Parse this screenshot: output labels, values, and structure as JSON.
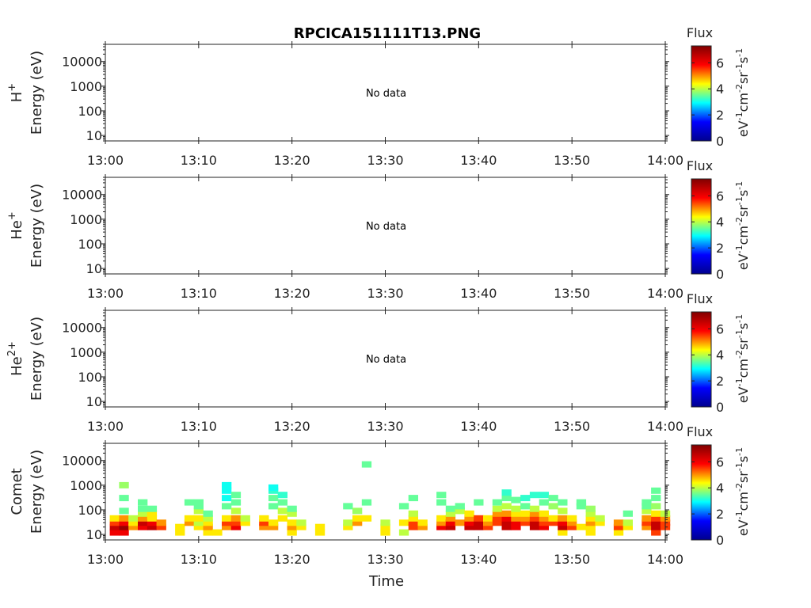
{
  "title": "RPCICA151111T13.PNG",
  "xlabel": "Time",
  "x_ticks": [
    "13:00",
    "13:10",
    "13:20",
    "13:30",
    "13:40",
    "13:50",
    "14:00"
  ],
  "colorbar": {
    "title": "Flux",
    "unit_base": [
      "eV",
      "cm",
      "sr",
      "s"
    ],
    "unit_exp": [
      "-1",
      "-2",
      "-1",
      "-1"
    ],
    "ticks": [
      "0",
      "2",
      "4",
      "6"
    ],
    "range": [
      0,
      7.3
    ],
    "colormap": [
      "#00008f",
      "#0000ff",
      "#00ffff",
      "#ffff00",
      "#ff0000",
      "#800000"
    ]
  },
  "chart_data": [
    {
      "type": "heatmap",
      "species_base": "H",
      "species_sup": "+",
      "ylabel": "Energy (eV)",
      "y_ticks": [
        "10",
        "100",
        "1000",
        "10000"
      ],
      "ylim": [
        6,
        50000
      ],
      "yscale": "log",
      "xlim": [
        "13:00",
        "14:00"
      ],
      "annotation": "No data",
      "points": []
    },
    {
      "type": "heatmap",
      "species_base": "He",
      "species_sup": "+",
      "ylabel": "Energy (eV)",
      "y_ticks": [
        "10",
        "100",
        "1000",
        "10000"
      ],
      "ylim": [
        6,
        50000
      ],
      "yscale": "log",
      "xlim": [
        "13:00",
        "14:00"
      ],
      "annotation": "No data",
      "points": []
    },
    {
      "type": "heatmap",
      "species_base": "He",
      "species_sup": "2+",
      "ylabel": "Energy (eV)",
      "y_ticks": [
        "10",
        "100",
        "1000",
        "10000"
      ],
      "ylim": [
        6,
        50000
      ],
      "yscale": "log",
      "xlim": [
        "13:00",
        "14:00"
      ],
      "annotation": "No data",
      "points": []
    },
    {
      "type": "heatmap",
      "species_base": "Comet",
      "species_sup": "",
      "ylabel": "Energy (eV)",
      "y_ticks": [
        "10",
        "100",
        "1000",
        "10000"
      ],
      "ylim": [
        6,
        50000
      ],
      "yscale": "log",
      "xlim": [
        "13:00",
        "14:00"
      ],
      "annotation": "",
      "points": [
        [
          "13:01",
          12,
          6.0
        ],
        [
          "13:01",
          20,
          6.5
        ],
        [
          "13:01",
          30,
          5.5
        ],
        [
          "13:01",
          45,
          4.5
        ],
        [
          "13:02",
          12,
          6.0
        ],
        [
          "13:02",
          20,
          7.0
        ],
        [
          "13:02",
          30,
          6.0
        ],
        [
          "13:02",
          45,
          5.0
        ],
        [
          "13:02",
          90,
          3.5
        ],
        [
          "13:02",
          300,
          3.5
        ],
        [
          "13:02",
          1000,
          3.8
        ],
        [
          "13:03",
          20,
          5.0
        ],
        [
          "13:03",
          30,
          4.5
        ],
        [
          "13:03",
          45,
          4.0
        ],
        [
          "13:04",
          20,
          6.0
        ],
        [
          "13:04",
          30,
          6.5
        ],
        [
          "13:04",
          45,
          5.0
        ],
        [
          "13:04",
          70,
          4.0
        ],
        [
          "13:04",
          110,
          3.5
        ],
        [
          "13:04",
          200,
          3.5
        ],
        [
          "13:05",
          20,
          6.5
        ],
        [
          "13:05",
          30,
          6.0
        ],
        [
          "13:05",
          45,
          4.5
        ],
        [
          "13:05",
          70,
          4.5
        ],
        [
          "13:05",
          110,
          3.5
        ],
        [
          "13:06",
          20,
          5.5
        ],
        [
          "13:06",
          30,
          5.0
        ],
        [
          "13:08",
          12,
          4.5
        ],
        [
          "13:08",
          20,
          4.5
        ],
        [
          "13:09",
          30,
          5.0
        ],
        [
          "13:09",
          45,
          4.5
        ],
        [
          "13:09",
          200,
          3.5
        ],
        [
          "13:10",
          20,
          4.5
        ],
        [
          "13:10",
          30,
          4.0
        ],
        [
          "13:10",
          45,
          4.5
        ],
        [
          "13:10",
          90,
          4.0
        ],
        [
          "13:10",
          140,
          3.5
        ],
        [
          "13:10",
          200,
          3.5
        ],
        [
          "13:11",
          12,
          4.5
        ],
        [
          "13:11",
          20,
          5.0
        ],
        [
          "13:11",
          30,
          4.5
        ],
        [
          "13:11",
          45,
          4.0
        ],
        [
          "13:11",
          70,
          3.5
        ],
        [
          "13:12",
          12,
          4.5
        ],
        [
          "13:13",
          20,
          5.0
        ],
        [
          "13:13",
          30,
          5.5
        ],
        [
          "13:13",
          45,
          4.5
        ],
        [
          "13:13",
          140,
          3.5
        ],
        [
          "13:13",
          300,
          3.0
        ],
        [
          "13:13",
          600,
          3.0
        ],
        [
          "13:13",
          1000,
          3.0
        ],
        [
          "13:14",
          20,
          6.0
        ],
        [
          "13:14",
          30,
          5.5
        ],
        [
          "13:14",
          45,
          5.0
        ],
        [
          "13:14",
          90,
          4.0
        ],
        [
          "13:14",
          200,
          3.5
        ],
        [
          "13:14",
          400,
          3.5
        ],
        [
          "13:15",
          30,
          4.5
        ],
        [
          "13:15",
          45,
          4.0
        ],
        [
          "13:17",
          20,
          5.0
        ],
        [
          "13:17",
          30,
          5.5
        ],
        [
          "13:17",
          45,
          4.5
        ],
        [
          "13:18",
          20,
          5.0
        ],
        [
          "13:18",
          30,
          4.5
        ],
        [
          "13:18",
          140,
          3.5
        ],
        [
          "13:18",
          300,
          3.5
        ],
        [
          "13:18",
          600,
          3.2
        ],
        [
          "13:18",
          800,
          3.0
        ],
        [
          "13:19",
          45,
          4.5
        ],
        [
          "13:19",
          90,
          4.0
        ],
        [
          "13:19",
          200,
          3.5
        ],
        [
          "13:19",
          400,
          3.2
        ],
        [
          "13:20",
          12,
          4.5
        ],
        [
          "13:20",
          20,
          5.0
        ],
        [
          "13:20",
          30,
          4.5
        ],
        [
          "13:20",
          70,
          4.0
        ],
        [
          "13:20",
          110,
          3.5
        ],
        [
          "13:21",
          20,
          4.5
        ],
        [
          "13:21",
          30,
          4.0
        ],
        [
          "13:23",
          12,
          4.5
        ],
        [
          "13:23",
          20,
          4.5
        ],
        [
          "13:26",
          20,
          4.5
        ],
        [
          "13:26",
          30,
          4.0
        ],
        [
          "13:26",
          140,
          3.5
        ],
        [
          "13:27",
          30,
          5.0
        ],
        [
          "13:27",
          45,
          4.5
        ],
        [
          "13:27",
          90,
          3.8
        ],
        [
          "13:28",
          45,
          4.5
        ],
        [
          "13:28",
          200,
          3.5
        ],
        [
          "13:28",
          7000,
          3.5
        ],
        [
          "13:30",
          12,
          4.5
        ],
        [
          "13:30",
          20,
          4.5
        ],
        [
          "13:30",
          30,
          4.0
        ],
        [
          "13:32",
          12,
          4.0
        ],
        [
          "13:32",
          30,
          4.5
        ],
        [
          "13:32",
          140,
          3.5
        ],
        [
          "13:33",
          20,
          5.5
        ],
        [
          "13:33",
          30,
          5.5
        ],
        [
          "13:33",
          45,
          4.5
        ],
        [
          "13:33",
          70,
          4.0
        ],
        [
          "13:33",
          300,
          3.5
        ],
        [
          "13:34",
          20,
          5.0
        ],
        [
          "13:34",
          30,
          4.5
        ],
        [
          "13:36",
          20,
          6.0
        ],
        [
          "13:36",
          30,
          5.0
        ],
        [
          "13:36",
          45,
          4.5
        ],
        [
          "13:36",
          200,
          3.5
        ],
        [
          "13:36",
          400,
          3.5
        ],
        [
          "13:37",
          20,
          6.5
        ],
        [
          "13:37",
          30,
          6.0
        ],
        [
          "13:37",
          45,
          5.0
        ],
        [
          "13:37",
          70,
          4.0
        ],
        [
          "13:37",
          110,
          3.5
        ],
        [
          "13:38",
          30,
          5.0
        ],
        [
          "13:38",
          90,
          4.0
        ],
        [
          "13:38",
          140,
          3.5
        ],
        [
          "13:39",
          20,
          6.5
        ],
        [
          "13:39",
          30,
          6.0
        ],
        [
          "13:39",
          45,
          5.0
        ],
        [
          "13:39",
          70,
          4.5
        ],
        [
          "13:40",
          20,
          6.5
        ],
        [
          "13:40",
          30,
          6.5
        ],
        [
          "13:40",
          45,
          5.5
        ],
        [
          "13:40",
          200,
          3.5
        ],
        [
          "13:41",
          20,
          5.5
        ],
        [
          "13:41",
          30,
          5.0
        ],
        [
          "13:41",
          45,
          4.5
        ],
        [
          "13:42",
          30,
          5.5
        ],
        [
          "13:42",
          45,
          5.5
        ],
        [
          "13:42",
          70,
          5.0
        ],
        [
          "13:42",
          110,
          4.0
        ],
        [
          "13:42",
          200,
          3.5
        ],
        [
          "13:43",
          20,
          6.5
        ],
        [
          "13:43",
          30,
          6.5
        ],
        [
          "13:43",
          45,
          6.0
        ],
        [
          "13:43",
          70,
          5.0
        ],
        [
          "13:43",
          140,
          4.0
        ],
        [
          "13:43",
          300,
          3.5
        ],
        [
          "13:43",
          500,
          3.2
        ],
        [
          "13:44",
          20,
          6.0
        ],
        [
          "13:44",
          30,
          6.0
        ],
        [
          "13:44",
          45,
          5.0
        ],
        [
          "13:44",
          70,
          4.5
        ],
        [
          "13:44",
          110,
          4.0
        ],
        [
          "13:44",
          250,
          3.5
        ],
        [
          "13:45",
          30,
          5.5
        ],
        [
          "13:45",
          45,
          5.0
        ],
        [
          "13:45",
          70,
          4.5
        ],
        [
          "13:45",
          140,
          3.5
        ],
        [
          "13:45",
          300,
          3.2
        ],
        [
          "13:46",
          20,
          6.5
        ],
        [
          "13:46",
          30,
          6.5
        ],
        [
          "13:46",
          45,
          5.5
        ],
        [
          "13:46",
          70,
          5.0
        ],
        [
          "13:46",
          110,
          4.0
        ],
        [
          "13:46",
          400,
          3.2
        ],
        [
          "13:47",
          20,
          6.0
        ],
        [
          "13:47",
          30,
          5.5
        ],
        [
          "13:47",
          45,
          5.0
        ],
        [
          "13:47",
          70,
          4.5
        ],
        [
          "13:47",
          200,
          3.5
        ],
        [
          "13:47",
          400,
          3.2
        ],
        [
          "13:48",
          30,
          5.5
        ],
        [
          "13:48",
          45,
          4.5
        ],
        [
          "13:48",
          140,
          3.8
        ],
        [
          "13:48",
          300,
          3.5
        ],
        [
          "13:49",
          12,
          4.5
        ],
        [
          "13:49",
          20,
          6.5
        ],
        [
          "13:49",
          30,
          6.0
        ],
        [
          "13:49",
          45,
          5.0
        ],
        [
          "13:49",
          90,
          4.0
        ],
        [
          "13:49",
          200,
          3.5
        ],
        [
          "13:50",
          20,
          5.5
        ],
        [
          "13:50",
          30,
          5.0
        ],
        [
          "13:50",
          45,
          4.5
        ],
        [
          "13:51",
          20,
          4.5
        ],
        [
          "13:51",
          140,
          3.5
        ],
        [
          "13:51",
          200,
          3.5
        ],
        [
          "13:52",
          12,
          4.5
        ],
        [
          "13:52",
          20,
          4.5
        ],
        [
          "13:52",
          30,
          5.0
        ],
        [
          "13:52",
          45,
          4.5
        ],
        [
          "13:52",
          70,
          4.0
        ],
        [
          "13:52",
          110,
          3.8
        ],
        [
          "13:53",
          30,
          4.5
        ],
        [
          "13:53",
          45,
          4.0
        ],
        [
          "13:55",
          12,
          4.5
        ],
        [
          "13:55",
          20,
          5.5
        ],
        [
          "13:55",
          30,
          5.0
        ],
        [
          "13:56",
          20,
          4.5
        ],
        [
          "13:56",
          30,
          4.0
        ],
        [
          "13:56",
          70,
          3.5
        ],
        [
          "13:58",
          20,
          5.0
        ],
        [
          "13:58",
          30,
          5.5
        ],
        [
          "13:58",
          45,
          5.0
        ],
        [
          "13:58",
          90,
          4.0
        ],
        [
          "13:58",
          140,
          3.5
        ],
        [
          "13:58",
          200,
          3.5
        ],
        [
          "13:59",
          12,
          5.5
        ],
        [
          "13:59",
          20,
          6.5
        ],
        [
          "13:59",
          30,
          6.5
        ],
        [
          "13:59",
          45,
          5.5
        ],
        [
          "13:59",
          70,
          4.5
        ],
        [
          "13:59",
          140,
          3.8
        ],
        [
          "13:59",
          300,
          3.5
        ],
        [
          "13:59",
          600,
          3.5
        ],
        [
          "14:00",
          20,
          5.5
        ],
        [
          "14:00",
          30,
          5.5
        ],
        [
          "14:00",
          45,
          5.0
        ],
        [
          "14:00",
          70,
          4.0
        ]
      ]
    }
  ]
}
